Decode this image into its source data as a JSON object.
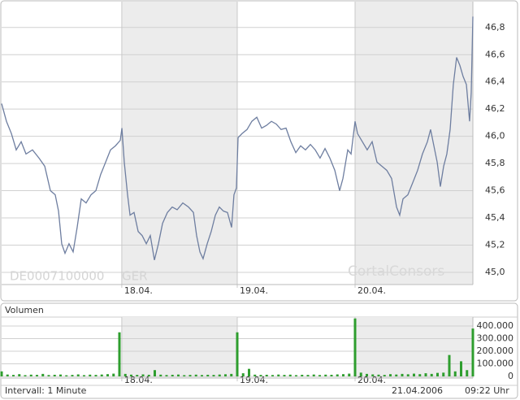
{
  "chart_data": [
    {
      "type": "line",
      "annotations": [
        "DE0007100000",
        "GER",
        "CortalConsors"
      ],
      "color": "#6e7ea0",
      "grid": true,
      "xlim": [
        0,
        4
      ],
      "ylim": [
        44.91,
        46.99
      ],
      "xticks": [
        {
          "value": 1.02,
          "label": "18.04."
        },
        {
          "value": 2,
          "label": "19.04."
        },
        {
          "value": 3,
          "label": "20.04."
        }
      ],
      "yticks": [
        {
          "value": 45.0,
          "label": "45,0"
        },
        {
          "value": 45.2,
          "label": "45,2"
        },
        {
          "value": 45.4,
          "label": "45,4"
        },
        {
          "value": 45.6,
          "label": "45,6"
        },
        {
          "value": 45.8,
          "label": "45,8"
        },
        {
          "value": 46.0,
          "label": "46,0"
        },
        {
          "value": 46.2,
          "label": "46,2"
        },
        {
          "value": 46.4,
          "label": "46,4"
        },
        {
          "value": 46.6,
          "label": "46,6"
        },
        {
          "value": 46.8,
          "label": "46,8"
        }
      ],
      "x": [
        0,
        0.041,
        0.083,
        0.124,
        0.166,
        0.207,
        0.262,
        0.317,
        0.366,
        0.414,
        0.455,
        0.483,
        0.51,
        0.538,
        0.572,
        0.607,
        0.641,
        0.676,
        0.717,
        0.759,
        0.8,
        0.841,
        0.883,
        0.924,
        0.966,
        1.007,
        1.021,
        1.041,
        1.069,
        1.09,
        1.124,
        1.159,
        1.193,
        1.228,
        1.262,
        1.297,
        1.331,
        1.366,
        1.407,
        1.448,
        1.49,
        1.538,
        1.586,
        1.628,
        1.655,
        1.683,
        1.71,
        1.745,
        1.779,
        1.814,
        1.848,
        1.883,
        1.917,
        1.952,
        1.972,
        1.993,
        2.007,
        2.041,
        2.083,
        2.124,
        2.166,
        2.207,
        2.248,
        2.29,
        2.331,
        2.372,
        2.414,
        2.455,
        2.497,
        2.538,
        2.579,
        2.621,
        2.662,
        2.703,
        2.745,
        2.786,
        2.828,
        2.869,
        2.897,
        2.938,
        2.966,
        3.0,
        3.021,
        3.062,
        3.103,
        3.145,
        3.186,
        3.228,
        3.269,
        3.31,
        3.352,
        3.379,
        3.407,
        3.448,
        3.49,
        3.531,
        3.572,
        3.614,
        3.641,
        3.669,
        3.697,
        3.724,
        3.752,
        3.779,
        3.807,
        3.834,
        3.862,
        3.89,
        3.917,
        3.945,
        3.972,
        3.986,
        4.0
      ],
      "values": [
        46.24,
        46.11,
        46.02,
        45.9,
        45.96,
        45.87,
        45.9,
        45.84,
        45.78,
        45.6,
        45.57,
        45.45,
        45.21,
        45.14,
        45.21,
        45.15,
        45.33,
        45.54,
        45.51,
        45.57,
        45.6,
        45.72,
        45.81,
        45.9,
        45.93,
        45.97,
        46.06,
        45.81,
        45.57,
        45.42,
        45.44,
        45.3,
        45.27,
        45.21,
        45.27,
        45.09,
        45.21,
        45.36,
        45.44,
        45.48,
        45.46,
        45.51,
        45.48,
        45.44,
        45.27,
        45.15,
        45.1,
        45.21,
        45.3,
        45.42,
        45.48,
        45.45,
        45.44,
        45.33,
        45.57,
        45.62,
        45.99,
        46.02,
        46.05,
        46.11,
        46.14,
        46.06,
        46.08,
        46.11,
        46.09,
        46.05,
        46.06,
        45.96,
        45.88,
        45.93,
        45.9,
        45.94,
        45.9,
        45.84,
        45.91,
        45.84,
        45.75,
        45.6,
        45.69,
        45.9,
        45.87,
        46.11,
        46.02,
        45.96,
        45.9,
        45.96,
        45.81,
        45.78,
        45.75,
        45.69,
        45.48,
        45.42,
        45.54,
        45.57,
        45.66,
        45.75,
        45.87,
        45.96,
        46.05,
        45.93,
        45.81,
        45.63,
        45.78,
        45.87,
        46.05,
        46.38,
        46.58,
        46.52,
        46.44,
        46.38,
        46.11,
        46.32,
        46.88
      ]
    },
    {
      "type": "bar",
      "title": "Volumen",
      "annotations": [
        "Intervall: 1 Minute",
        "21.04.2006",
        "09:22 Uhr"
      ],
      "color": "#2e9e2e",
      "grid": true,
      "xlim": [
        0,
        4
      ],
      "ylim": [
        -13000,
        471000
      ],
      "xticks": [
        {
          "value": 1.02,
          "label": "18.04."
        },
        {
          "value": 2,
          "label": "19.04."
        },
        {
          "value": 3,
          "label": "20.04."
        }
      ],
      "yticks": [
        0,
        {
          "value": 100000,
          "label": "100.000"
        },
        {
          "value": 200000,
          "label": "200.000"
        },
        {
          "value": 300000,
          "label": "300.000"
        },
        {
          "value": 400000,
          "label": "400.000"
        }
      ],
      "x": [
        0,
        0.05,
        0.1,
        0.15,
        0.2,
        0.25,
        0.3,
        0.35,
        0.4,
        0.45,
        0.5,
        0.55,
        0.6,
        0.65,
        0.7,
        0.75,
        0.8,
        0.85,
        0.9,
        0.95,
        1.0,
        1.05,
        1.1,
        1.15,
        1.2,
        1.25,
        1.3,
        1.35,
        1.4,
        1.45,
        1.5,
        1.55,
        1.6,
        1.65,
        1.7,
        1.75,
        1.8,
        1.85,
        1.9,
        1.95,
        2.0,
        2.05,
        2.1,
        2.15,
        2.2,
        2.25,
        2.3,
        2.35,
        2.4,
        2.45,
        2.5,
        2.55,
        2.6,
        2.65,
        2.7,
        2.75,
        2.8,
        2.85,
        2.9,
        2.95,
        3.0,
        3.05,
        3.1,
        3.15,
        3.2,
        3.25,
        3.3,
        3.35,
        3.4,
        3.45,
        3.5,
        3.55,
        3.6,
        3.65,
        3.7,
        3.75,
        3.8,
        3.85,
        3.9,
        3.95,
        4.0
      ],
      "values": [
        40000,
        15000,
        12000,
        18000,
        10000,
        14000,
        12000,
        20000,
        11000,
        13000,
        15000,
        9000,
        12000,
        16000,
        10000,
        14000,
        12000,
        15000,
        18000,
        22000,
        350000,
        20000,
        14000,
        12000,
        16000,
        13000,
        50000,
        14000,
        11000,
        13000,
        15000,
        10000,
        12000,
        14000,
        11000,
        13000,
        12000,
        15000,
        17000,
        20000,
        350000,
        25000,
        60000,
        14000,
        12000,
        13000,
        11000,
        15000,
        12000,
        14000,
        10000,
        13000,
        12000,
        15000,
        11000,
        14000,
        13000,
        16000,
        18000,
        22000,
        460000,
        30000,
        20000,
        16000,
        14000,
        12000,
        18000,
        15000,
        20000,
        17000,
        22000,
        18000,
        25000,
        20000,
        28000,
        30000,
        170000,
        40000,
        120000,
        50000,
        380000
      ]
    }
  ]
}
